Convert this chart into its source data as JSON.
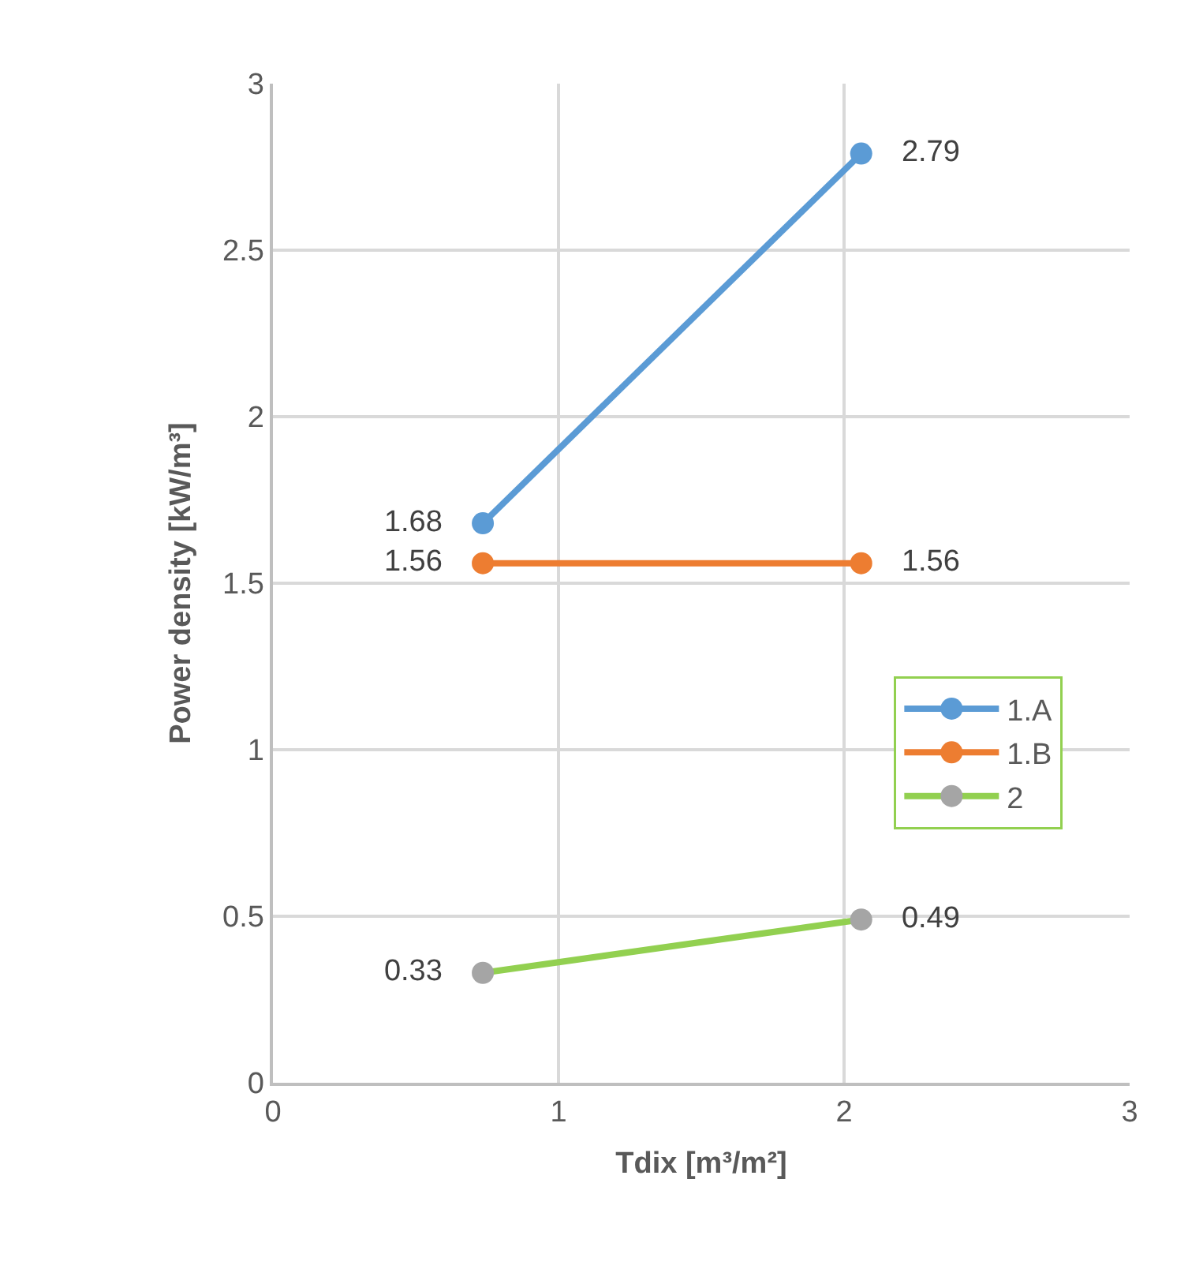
{
  "chart_data": {
    "type": "line",
    "xlabel": "Tdix [m³/m²]",
    "ylabel": "Power density [kW/m³]",
    "x": [
      0.735,
      2.06
    ],
    "series": [
      {
        "name": "1.A",
        "color": "#5b9bd5",
        "values": [
          1.68,
          2.79
        ]
      },
      {
        "name": "1.B",
        "color": "#ed7d31",
        "values": [
          1.56,
          1.56
        ]
      },
      {
        "name": "2",
        "color": "#92d050",
        "colors": [
          "#a5a5a5",
          "#a5a5a5"
        ],
        "values": [
          0.33,
          0.49
        ]
      }
    ],
    "xlim": [
      0,
      3
    ],
    "xticks": [
      0,
      1,
      2,
      3
    ],
    "ylim": [
      0,
      3
    ],
    "yticks": [
      0,
      0.5,
      1,
      1.5,
      2,
      2.5,
      3
    ],
    "grid": true,
    "legend": "right",
    "marker": "circle",
    "line_style": "solid",
    "data_labels": true
  }
}
